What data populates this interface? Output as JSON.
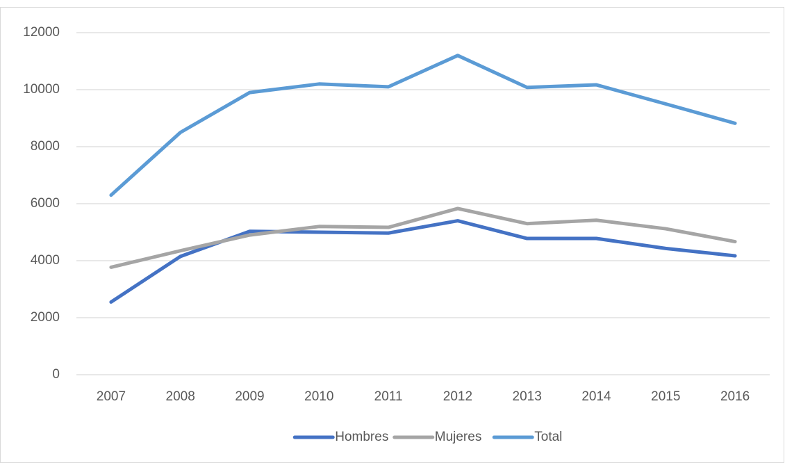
{
  "chart_data": {
    "type": "line",
    "categories": [
      "2007",
      "2008",
      "2009",
      "2010",
      "2011",
      "2012",
      "2013",
      "2014",
      "2015",
      "2016"
    ],
    "series": [
      {
        "name": "Hombres",
        "color": "#4472c4",
        "values": [
          2550,
          4150,
          5030,
          5000,
          4970,
          5400,
          4780,
          4780,
          4430,
          4170
        ]
      },
      {
        "name": "Mujeres",
        "color": "#a5a5a5",
        "values": [
          3770,
          4350,
          4900,
          5200,
          5170,
          5830,
          5300,
          5420,
          5120,
          4670
        ]
      },
      {
        "name": "Total",
        "color": "#5b9bd5",
        "values": [
          6300,
          8500,
          9900,
          10200,
          10100,
          11200,
          10080,
          10170,
          9500,
          8820
        ]
      }
    ],
    "ylim": [
      0,
      12000
    ],
    "yticks": [
      0,
      2000,
      4000,
      6000,
      8000,
      10000,
      12000
    ],
    "grid": true,
    "legend": "bottom"
  }
}
